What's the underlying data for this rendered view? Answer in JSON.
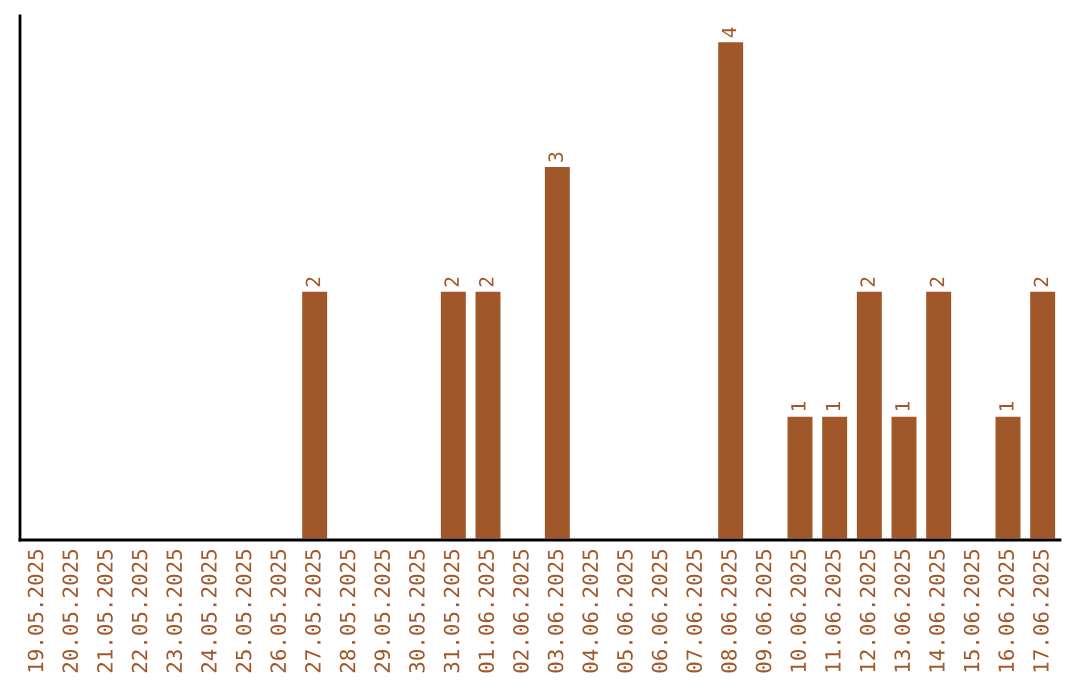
{
  "chart_data": {
    "type": "bar",
    "categories": [
      "19.05.2025",
      "20.05.2025",
      "21.05.2025",
      "22.05.2025",
      "23.05.2025",
      "24.05.2025",
      "25.05.2025",
      "26.05.2025",
      "27.05.2025",
      "28.05.2025",
      "29.05.2025",
      "30.05.2025",
      "31.05.2025",
      "01.06.2025",
      "02.06.2025",
      "03.06.2025",
      "04.06.2025",
      "05.06.2025",
      "06.06.2025",
      "07.06.2025",
      "08.06.2025",
      "09.06.2025",
      "10.06.2025",
      "11.06.2025",
      "12.06.2025",
      "13.06.2025",
      "14.06.2025",
      "15.06.2025",
      "16.06.2025",
      "17.06.2025"
    ],
    "values": [
      null,
      null,
      null,
      null,
      null,
      null,
      null,
      null,
      2,
      null,
      null,
      null,
      2,
      2,
      null,
      3,
      null,
      null,
      null,
      null,
      4,
      null,
      1,
      1,
      2,
      1,
      2,
      null,
      1,
      2
    ],
    "value_labels": [
      null,
      null,
      null,
      null,
      null,
      null,
      null,
      null,
      "2",
      null,
      null,
      null,
      "2",
      "2",
      null,
      "3",
      null,
      null,
      null,
      null,
      "4",
      null,
      "1",
      "1",
      "2",
      "1",
      "2",
      null,
      "1",
      "2"
    ],
    "color": "#a0572a",
    "ylim": [
      0,
      4.2
    ],
    "tick_labels": "x",
    "grid": false,
    "legend": false
  }
}
